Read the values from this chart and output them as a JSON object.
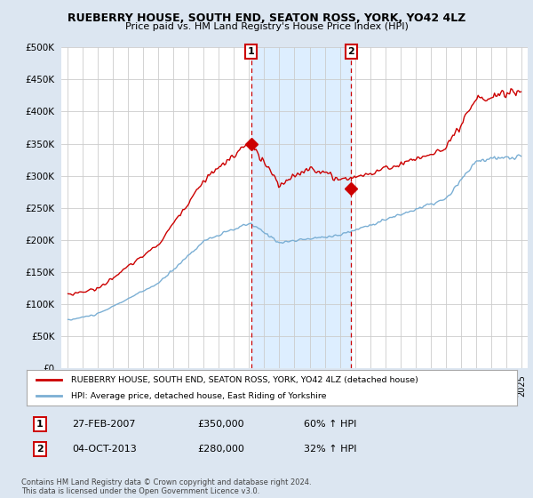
{
  "title": "RUEBERRY HOUSE, SOUTH END, SEATON ROSS, YORK, YO42 4LZ",
  "subtitle": "Price paid vs. HM Land Registry's House Price Index (HPI)",
  "ylim": [
    0,
    500000
  ],
  "yticks": [
    0,
    50000,
    100000,
    150000,
    200000,
    250000,
    300000,
    350000,
    400000,
    450000,
    500000
  ],
  "xlim_start": 1994.6,
  "xlim_end": 2025.4,
  "red_line_color": "#cc0000",
  "blue_line_color": "#7bafd4",
  "shade_color": "#ddeeff",
  "marker1_x": 2007.14,
  "marker1_y": 350000,
  "marker2_x": 2013.75,
  "marker2_y": 280000,
  "legend_label_red": "RUEBERRY HOUSE, SOUTH END, SEATON ROSS, YORK, YO42 4LZ (detached house)",
  "legend_label_blue": "HPI: Average price, detached house, East Riding of Yorkshire",
  "sale1_label": "1",
  "sale1_date": "27-FEB-2007",
  "sale1_price": "£350,000",
  "sale1_hpi": "60% ↑ HPI",
  "sale2_label": "2",
  "sale2_date": "04-OCT-2013",
  "sale2_price": "£280,000",
  "sale2_hpi": "32% ↑ HPI",
  "footer": "Contains HM Land Registry data © Crown copyright and database right 2024.\nThis data is licensed under the Open Government Licence v3.0.",
  "background_color": "#dce6f1",
  "plot_bg_color": "#ffffff",
  "grid_color": "#cccccc",
  "title_fontsize": 9,
  "subtitle_fontsize": 8
}
